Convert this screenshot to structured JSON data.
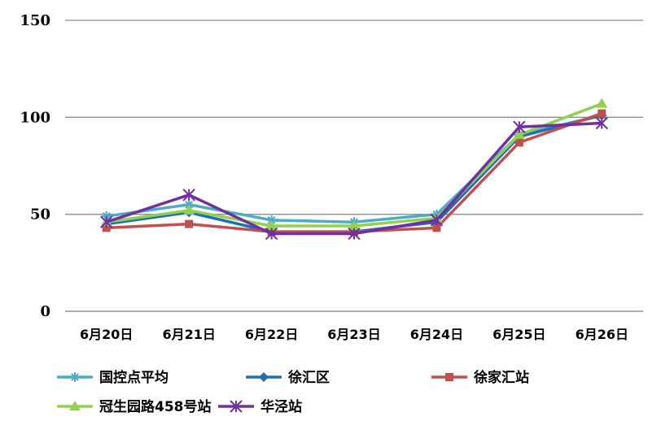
{
  "chart_data": {
    "type": "line",
    "categories": [
      "6月20日",
      "6月21日",
      "6月22日",
      "6月23日",
      "6月24日",
      "6月25日",
      "6月26日"
    ],
    "ylim": [
      0,
      150
    ],
    "yticks": [
      0,
      50,
      100,
      150
    ],
    "grid": true,
    "legend_position": "bottom",
    "series": [
      {
        "name": "国控点平均",
        "color": "#4BACC6",
        "marker": "asterisk",
        "values": [
          49,
          55,
          47,
          46,
          50,
          91,
          101
        ]
      },
      {
        "name": "徐汇区",
        "color": "#1F6FB4",
        "marker": "diamond",
        "values": [
          45,
          51,
          41,
          41,
          46,
          90,
          101
        ]
      },
      {
        "name": "徐家汇站",
        "color": "#C0504D",
        "marker": "square",
        "values": [
          43,
          45,
          41,
          41,
          43,
          87,
          102
        ]
      },
      {
        "name": "冠生园路458号站",
        "color": "#92D050",
        "marker": "triangle",
        "values": [
          46,
          52,
          44,
          44,
          48,
          91,
          107
        ]
      },
      {
        "name": "华泾站",
        "color": "#7030A0",
        "marker": "star",
        "values": [
          46,
          60,
          40,
          40,
          47,
          95,
          97
        ]
      }
    ]
  }
}
